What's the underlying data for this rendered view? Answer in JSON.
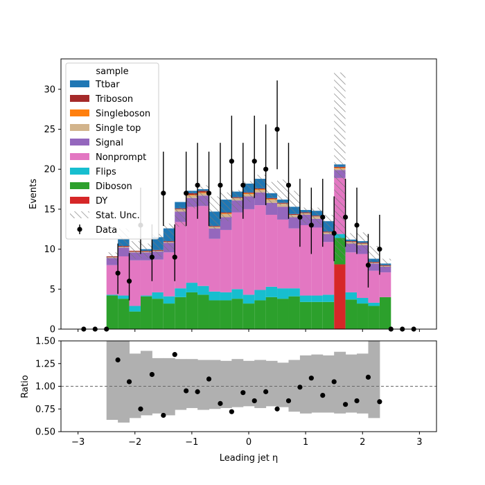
{
  "chart_data": [
    {
      "type": "bar",
      "stacked": true,
      "xlabel": "",
      "ylabel": "Events",
      "xlim": [
        -3.3,
        3.3
      ],
      "ylim": [
        0,
        33.8
      ],
      "xticks": [
        -3,
        -2,
        -1,
        0,
        1,
        2,
        3
      ],
      "xtick_labels": [
        "",
        "",
        "",
        "",
        "",
        "",
        ""
      ],
      "yticks": [
        0,
        5,
        10,
        15,
        20,
        25,
        30
      ],
      "ytick_labels": [
        "0",
        "5",
        "10",
        "15",
        "20",
        "25",
        "30"
      ],
      "bin_edges": [
        -3.1,
        -2.9,
        -2.7,
        -2.5,
        -2.3,
        -2.1,
        -1.9,
        -1.7,
        -1.5,
        -1.3,
        -1.1,
        -0.9,
        -0.7,
        -0.5,
        -0.3,
        -0.1,
        0.1,
        0.3,
        0.5,
        0.7,
        0.9,
        1.1,
        1.3,
        1.5,
        1.7,
        1.9,
        2.1,
        2.3,
        2.5,
        2.7,
        2.9,
        3.1
      ],
      "legend_title": "sample",
      "legend_position": "upper-left",
      "series": [
        {
          "name": "DY",
          "color": "#d62728",
          "values": [
            0,
            0,
            0,
            0,
            0,
            0,
            0,
            0,
            0,
            0,
            0,
            0,
            0,
            0,
            0,
            0,
            0,
            0,
            0,
            0,
            0,
            0,
            0,
            8.1,
            0,
            0,
            0,
            0,
            0,
            0,
            0
          ]
        },
        {
          "name": "Diboson",
          "color": "#2ca02c",
          "values": [
            0,
            0,
            0,
            4.2,
            3.8,
            2.2,
            4.1,
            3.8,
            3.2,
            4.0,
            4.6,
            4.3,
            3.6,
            3.6,
            3.8,
            3.2,
            3.6,
            4.0,
            3.8,
            4.1,
            3.4,
            3.4,
            3.4,
            3.3,
            3.7,
            3.2,
            2.9,
            4.0,
            0,
            0,
            0
          ]
        },
        {
          "name": "Flips",
          "color": "#17becf",
          "values": [
            0,
            0,
            0,
            0.1,
            0.4,
            0.7,
            0.1,
            0.8,
            0.9,
            1.1,
            1.2,
            1.1,
            1.1,
            1.0,
            1.2,
            1.1,
            1.3,
            1.3,
            1.3,
            1.0,
            0.8,
            0.8,
            0.9,
            0.5,
            0.9,
            0.7,
            0.4,
            0,
            0,
            0,
            0
          ]
        },
        {
          "name": "Nonprompt",
          "color": "#e377c2",
          "values": [
            0,
            0,
            0,
            3.7,
            4.9,
            5.7,
            4.4,
            4.1,
            5.5,
            8.3,
            9.5,
            10.0,
            6.6,
            7.8,
            9.6,
            10.7,
            10.6,
            9.0,
            8.6,
            7.5,
            8.8,
            8.5,
            6.6,
            7.0,
            5.0,
            5.5,
            4.0,
            3.1,
            0,
            0,
            0
          ]
        },
        {
          "name": "Signal",
          "color": "#9467bd",
          "values": [
            0,
            0,
            0,
            0.9,
            1.1,
            1.0,
            1.0,
            1.0,
            1.2,
            1.3,
            1.1,
            1.3,
            1.3,
            1.6,
            1.5,
            1.6,
            1.6,
            1.5,
            1.6,
            1.4,
            1.3,
            1.1,
            1.0,
            1.0,
            1.1,
            1.1,
            0.9,
            0.7,
            0,
            0,
            0
          ]
        },
        {
          "name": "Single top",
          "color": "#d2b48c",
          "values": [
            0,
            0,
            0,
            0.1,
            0.1,
            0.1,
            0.1,
            0.1,
            0.1,
            0.3,
            0.3,
            0.3,
            0.2,
            0.4,
            0.3,
            0.3,
            0.3,
            0.4,
            0.4,
            0.3,
            0.2,
            0.3,
            0.2,
            0.2,
            0.2,
            0.2,
            0.1,
            0.1,
            0,
            0,
            0
          ]
        },
        {
          "name": "Singleboson",
          "color": "#ff7f0e",
          "values": [
            0,
            0,
            0,
            0,
            0,
            0,
            0,
            0,
            0,
            0,
            0.1,
            0.1,
            0,
            0.1,
            0,
            0.1,
            0.1,
            0.1,
            0,
            0,
            0,
            0,
            0,
            0.1,
            0,
            0,
            0,
            0,
            0,
            0,
            0
          ]
        },
        {
          "name": "Triboson",
          "color": "#a52a2a",
          "values": [
            0,
            0,
            0,
            0.1,
            0.1,
            0.1,
            0.1,
            0.1,
            0.1,
            0.1,
            0.2,
            0.2,
            0.1,
            0.1,
            0.1,
            0.1,
            0.1,
            0.1,
            0.1,
            0.1,
            0.1,
            0.1,
            0.1,
            0.1,
            0.1,
            0.1,
            0.1,
            0.1,
            0,
            0,
            0
          ]
        },
        {
          "name": "Ttbar",
          "color": "#1f77b4",
          "values": [
            0,
            0,
            0,
            0,
            0.9,
            0,
            0.2,
            1.6,
            1.6,
            0.8,
            0.3,
            0.2,
            1.8,
            1.6,
            0.7,
            1.1,
            1.2,
            0.6,
            0.4,
            0.9,
            0.3,
            0.6,
            1.3,
            0.3,
            0.2,
            0.2,
            0.4,
            0.2,
            0,
            0,
            0
          ]
        }
      ],
      "stat_unc": {
        "name": "Stat. Unc.",
        "low": [
          0,
          0,
          0,
          8.6,
          10.2,
          8.8,
          8.9,
          9.0,
          9.8,
          12.8,
          15.1,
          15.4,
          12.5,
          13.5,
          14.8,
          15.9,
          16.7,
          15.6,
          15.5,
          13.9,
          13.2,
          13.0,
          11.7,
          8.6,
          10.3,
          9.8,
          8.2,
          7.6,
          0,
          0,
          0
        ],
        "high": [
          0,
          0,
          0,
          9.6,
          12.6,
          11.0,
          10.7,
          12.0,
          13.2,
          15.4,
          17.3,
          18.0,
          16.6,
          17.1,
          17.4,
          18.5,
          19.3,
          18.4,
          18.7,
          17.3,
          15.2,
          15.2,
          14.3,
          32.1,
          12.0,
          12.1,
          10.4,
          8.8,
          0,
          0,
          0
        ]
      },
      "data_points": {
        "name": "Data",
        "x": [
          -2.9,
          -2.7,
          -2.5,
          -2.3,
          -2.1,
          -1.9,
          -1.7,
          -1.5,
          -1.3,
          -1.1,
          -0.9,
          -0.7,
          -0.5,
          -0.3,
          -0.1,
          0.1,
          0.3,
          0.5,
          0.7,
          0.9,
          1.1,
          1.3,
          1.5,
          1.7,
          1.9,
          2.1,
          2.3,
          2.5,
          2.7,
          2.9
        ],
        "y": [
          0,
          0,
          0,
          7,
          6,
          13,
          9,
          17,
          9,
          17,
          18,
          17,
          18,
          21,
          18,
          21,
          20,
          25,
          18,
          14,
          13,
          14,
          12,
          14,
          13,
          8,
          10,
          0,
          0,
          0
        ],
        "err_low": [
          0,
          0,
          0,
          2.6,
          2.4,
          3.6,
          3.0,
          4.1,
          3.0,
          4.1,
          4.2,
          4.1,
          4.2,
          4.6,
          4.2,
          4.6,
          4.5,
          5.0,
          4.2,
          3.7,
          3.6,
          3.7,
          3.5,
          3.7,
          3.6,
          2.8,
          3.2,
          0,
          0,
          0
        ],
        "err_high": [
          0,
          0,
          0,
          3.7,
          3.5,
          4.7,
          4.1,
          5.2,
          4.1,
          5.2,
          5.3,
          5.2,
          5.3,
          5.7,
          5.3,
          5.7,
          5.6,
          6.1,
          5.3,
          4.8,
          4.7,
          4.8,
          4.6,
          4.8,
          4.7,
          3.9,
          4.3,
          0,
          0,
          0
        ]
      }
    },
    {
      "type": "scatter",
      "xlabel": "Leading jet  η",
      "ylabel": "Ratio",
      "xlim": [
        -3.3,
        3.3
      ],
      "ylim": [
        0.5,
        1.5
      ],
      "xticks": [
        -3,
        -2,
        -1,
        0,
        1,
        2,
        3
      ],
      "xtick_labels": [
        "−3",
        "−2",
        "−1",
        "0",
        "1",
        "2",
        "3"
      ],
      "yticks": [
        0.5,
        0.75,
        1.0,
        1.25,
        1.5
      ],
      "ytick_labels": [
        "0.50",
        "0.75",
        "1.00",
        "1.25",
        "1.50"
      ],
      "reference_line": 1.0,
      "uncertainty_band": {
        "color": "#b0b0b0",
        "bin_edges": [
          -2.5,
          -2.3,
          -2.1,
          -1.9,
          -1.7,
          -1.5,
          -1.3,
          -1.1,
          -0.9,
          -0.7,
          -0.5,
          -0.3,
          -0.1,
          0.1,
          0.3,
          0.5,
          0.7,
          0.9,
          1.1,
          1.3,
          1.5,
          1.7,
          1.9,
          2.1,
          2.3
        ],
        "low": [
          0.63,
          0.6,
          0.65,
          0.68,
          0.7,
          0.68,
          0.74,
          0.76,
          0.74,
          0.75,
          0.76,
          0.77,
          0.78,
          0.76,
          0.78,
          0.77,
          0.72,
          0.7,
          0.71,
          0.71,
          0.7,
          0.71,
          0.7,
          0.65
        ],
        "high": [
          1.5,
          1.5,
          1.36,
          1.39,
          1.31,
          1.31,
          1.3,
          1.3,
          1.29,
          1.29,
          1.28,
          1.3,
          1.28,
          1.29,
          1.28,
          1.26,
          1.29,
          1.34,
          1.35,
          1.34,
          1.38,
          1.35,
          1.36,
          1.5
        ]
      },
      "points": {
        "x": [
          -2.3,
          -2.1,
          -1.9,
          -1.7,
          -1.5,
          -1.3,
          -1.1,
          -0.9,
          -0.7,
          -0.5,
          -0.3,
          -0.1,
          0.1,
          0.3,
          0.5,
          0.7,
          0.9,
          1.1,
          1.3,
          1.5,
          1.7,
          1.9,
          2.1,
          2.3
        ],
        "y": [
          1.29,
          1.05,
          0.75,
          1.13,
          0.68,
          1.35,
          0.95,
          0.94,
          1.08,
          0.81,
          0.72,
          0.93,
          0.84,
          0.94,
          0.75,
          0.84,
          0.99,
          1.09,
          0.9,
          1.05,
          0.8,
          0.84,
          1.1,
          0.83
        ]
      }
    }
  ]
}
